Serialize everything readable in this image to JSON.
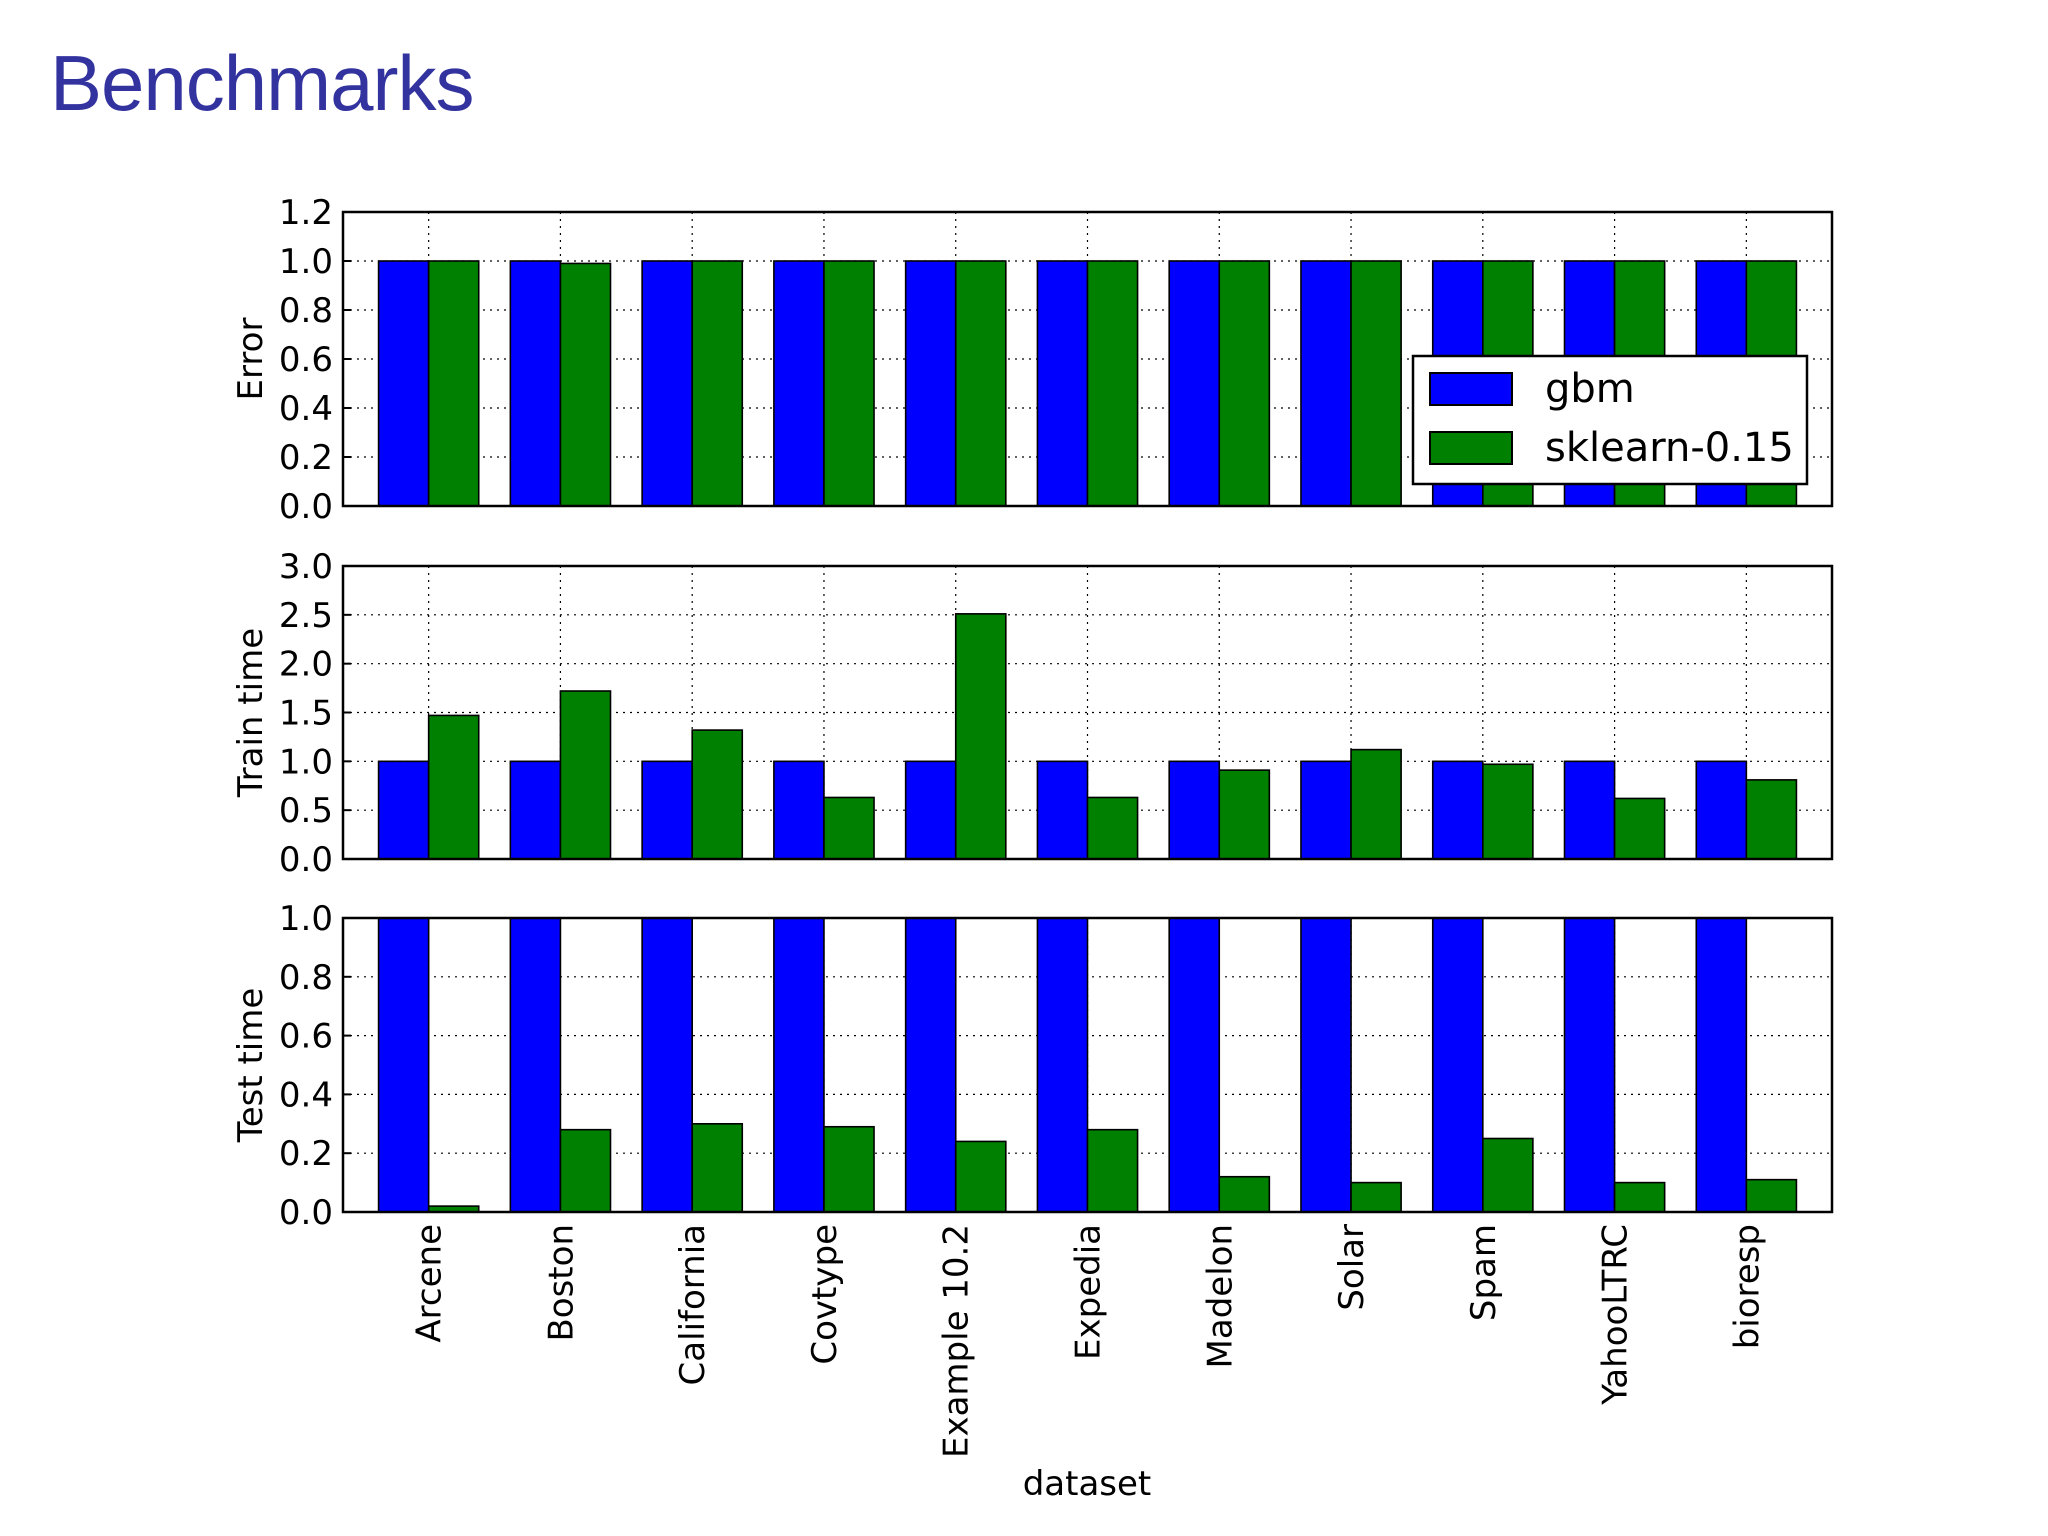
{
  "slide": {
    "title": "Benchmarks"
  },
  "colors": {
    "gbm": "#0000ff",
    "sklearn": "#008000",
    "title": "#3333a0"
  },
  "chart_data": {
    "type": "bar",
    "categories": [
      "Arcene",
      "Boston",
      "California",
      "Covtype",
      "Example 10.2",
      "Expedia",
      "Madelon",
      "Solar",
      "Spam",
      "YahooLTRC",
      "bioresp"
    ],
    "xlabel": "dataset",
    "legend": {
      "entries": [
        "gbm",
        "sklearn-0.15"
      ],
      "placement": "right, top subplot"
    },
    "grid": true,
    "subplots": [
      {
        "ylabel": "Error",
        "ylim": [
          0,
          1.2
        ],
        "yticks": [
          "0.0",
          "0.2",
          "0.4",
          "0.6",
          "0.8",
          "1.0",
          "1.2"
        ],
        "series": [
          {
            "name": "gbm",
            "values": [
              1,
              1,
              1,
              1,
              1,
              1,
              1,
              1,
              1,
              1,
              1
            ]
          },
          {
            "name": "sklearn-0.15",
            "values": [
              1,
              0.99,
              1,
              1,
              1,
              1,
              1,
              1,
              1,
              1,
              1
            ]
          }
        ]
      },
      {
        "ylabel": "Train time",
        "ylim": [
          0,
          3.0
        ],
        "yticks": [
          "0.0",
          "0.5",
          "1.0",
          "1.5",
          "2.0",
          "2.5",
          "3.0"
        ],
        "series": [
          {
            "name": "gbm",
            "values": [
              1,
              1,
              1,
              1,
              1,
              1,
              1,
              1,
              1,
              1,
              1
            ]
          },
          {
            "name": "sklearn-0.15",
            "values": [
              1.47,
              1.72,
              1.32,
              0.63,
              2.51,
              0.63,
              0.91,
              1.12,
              0.97,
              0.62,
              0.81
            ]
          }
        ]
      },
      {
        "ylabel": "Test time",
        "ylim": [
          0,
          1.0
        ],
        "yticks": [
          "0.0",
          "0.2",
          "0.4",
          "0.6",
          "0.8",
          "1.0"
        ],
        "series": [
          {
            "name": "gbm",
            "values": [
              1,
              1,
              1,
              1,
              1,
              1,
              1,
              1,
              1,
              1,
              1
            ]
          },
          {
            "name": "sklearn-0.15",
            "values": [
              0.02,
              0.28,
              0.3,
              0.29,
              0.24,
              0.28,
              0.12,
              0.1,
              0.25,
              0.1,
              0.11
            ]
          }
        ]
      }
    ]
  }
}
